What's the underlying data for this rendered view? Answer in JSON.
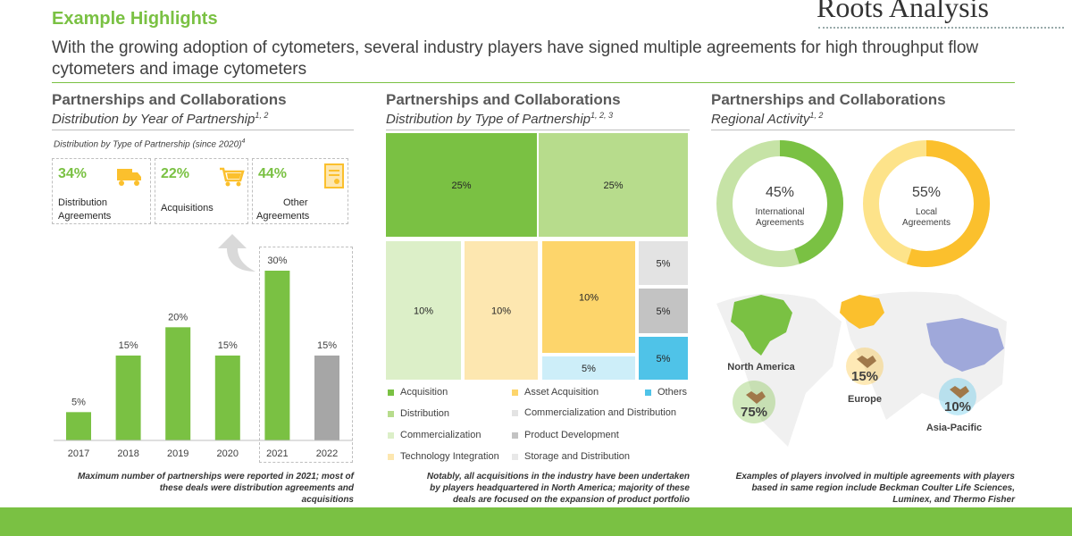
{
  "header": {
    "title": "Example Highlights",
    "subtitle": "With the growing adoption of cytometers, several industry players have signed multiple agreements for high throughput flow cytometers and image cytometers",
    "brand": "Roots Analysis"
  },
  "panel1": {
    "title": "Partnerships and Collaborations",
    "subtitle": "Distribution by Year of Partnership",
    "subtitle_sup": "1, 2",
    "caption": "Distribution by Type of Partnership (since 2020)",
    "caption_sup": "4",
    "cards": [
      {
        "pct": "34%",
        "label_line1": "Distribution",
        "label_line2": "Agreements",
        "icon": "truck-icon"
      },
      {
        "pct": "22%",
        "label_line1": "Acquisitions",
        "label_line2": "",
        "icon": "cart-icon"
      },
      {
        "pct": "44%",
        "label_line1": "Other",
        "label_line2": "Agreements",
        "icon": "document-icon"
      }
    ],
    "note_line1": "Maximum number of partnerships were reported in 2021; most of",
    "note_line2": "these deals were distribution  agreements and",
    "note_line3": "acquisitions"
  },
  "panel2": {
    "title": "Partnerships and Collaborations",
    "subtitle": "Distribution by Type of Partnership",
    "subtitle_sup": "1, 2, 3",
    "note_line1": "Notably, all acquisitions in the industry have been undertaken",
    "note_line2": "by players headquartered in North America; majority of these",
    "note_line3": "deals are focused on the expansion of product portfolio"
  },
  "panel3": {
    "title": "Partnerships and Collaborations",
    "subtitle": "Regional Activity",
    "subtitle_sup": "1, 2",
    "note_line1": "Examples of players involved in multiple agreements with players",
    "note_line2": "based in same region include Beckman Coulter Life Sciences,",
    "note_line3": "Luminex, and Thermo Fisher"
  },
  "chart_data": [
    {
      "type": "bar",
      "categories": [
        "2017",
        "2018",
        "2019",
        "2020",
        "2021",
        "2022"
      ],
      "values": [
        5,
        15,
        20,
        15,
        30,
        15
      ],
      "labels": [
        "5%",
        "15%",
        "20%",
        "15%",
        "30%",
        "15%"
      ],
      "colors": [
        "#7ac143",
        "#7ac143",
        "#7ac143",
        "#7ac143",
        "#7ac143",
        "#a6a6a6"
      ]
    },
    {
      "type": "treemap",
      "cells": [
        {
          "category": "Acquisition",
          "value": 25,
          "label": "25%",
          "color": "#7ac143"
        },
        {
          "category": "Distribution",
          "value": 25,
          "label": "25%",
          "color": "#b7dc8c"
        },
        {
          "category": "Commercialization",
          "value": 10,
          "label": "10%",
          "color": "#dcefc8"
        },
        {
          "category": "Technology Integration",
          "value": 10,
          "label": "10%",
          "color": "#fde7b0"
        },
        {
          "category": "Asset Acquisition",
          "value": 10,
          "label": "10%",
          "color": "#fdd56b"
        },
        {
          "category": "Storage and Distribution",
          "value": 5,
          "label": "5%",
          "color": "#cdeef9"
        },
        {
          "category": "Commercialization  and Distribution",
          "value": 5,
          "label": "5%",
          "color": "#e3e3e3"
        },
        {
          "category": "Product Development",
          "value": 5,
          "label": "5%",
          "color": "#c3c3c3"
        },
        {
          "category": "Others",
          "value": 5,
          "label": "5%",
          "color": "#4fc3e8"
        }
      ],
      "legend": [
        {
          "label": "Acquisition",
          "color": "#7ac143"
        },
        {
          "label": "Asset Acquisition",
          "color": "#fdd56b"
        },
        {
          "label": "Others",
          "color": "#4fc3e8"
        },
        {
          "label": "Distribution",
          "color": "#b7dc8c"
        },
        {
          "label": "Commercialization  and Distribution",
          "color": "#e3e3e3"
        },
        {
          "label": "Commercialization",
          "color": "#dcefc8"
        },
        {
          "label": "Product Development",
          "color": "#c3c3c3"
        },
        {
          "label": "Technology  Integration",
          "color": "#fde7b0"
        },
        {
          "label": "Storage and Distribution",
          "color": "#e8e8e8"
        }
      ]
    },
    {
      "type": "pie",
      "donuts": [
        {
          "value": 45,
          "label": "45%",
          "text_line1": "International",
          "text_line2": "Agreements",
          "color": "#7ac143",
          "rest_color": "#c6e3a6"
        },
        {
          "value": 55,
          "label": "55%",
          "text_line1": "Local",
          "text_line2": "Agreements",
          "color": "#fbc02d",
          "rest_color": "#fde38a"
        }
      ],
      "regions": [
        {
          "name": "North America",
          "value": 75,
          "label": "75%",
          "color": "#7ac143"
        },
        {
          "name": "Europe",
          "value": 15,
          "label": "15%",
          "color": "#fbc02d"
        },
        {
          "name": "Asia-Pacific",
          "value": 10,
          "label": "10%",
          "color": "#4fc3e8"
        }
      ]
    }
  ]
}
